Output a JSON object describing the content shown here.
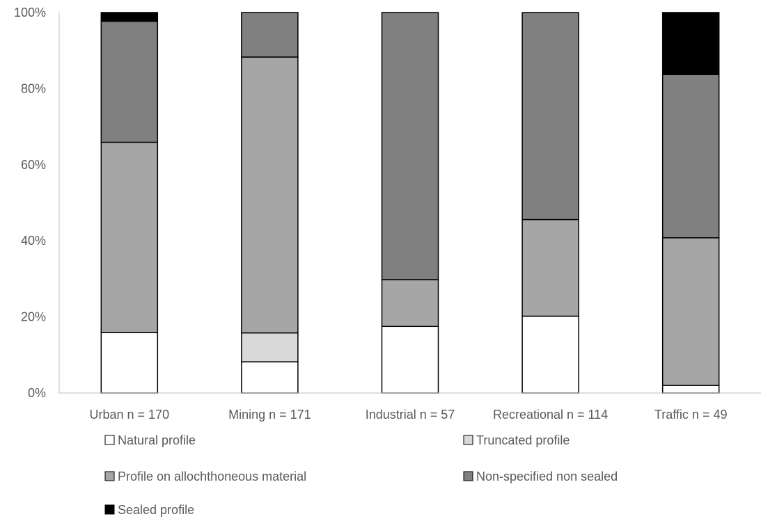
{
  "chart_data": {
    "type": "bar",
    "stacked": true,
    "percent": true,
    "categories": [
      "Urban n = 170",
      "Mining n = 171",
      "Industrial n = 57",
      "Recreational n = 114",
      "Traffic n = 49"
    ],
    "series": [
      {
        "name": "Natural profile",
        "color": "#ffffff",
        "values": [
          15.9,
          8.2,
          17.5,
          20.2,
          2.0
        ]
      },
      {
        "name": "Truncated profile",
        "color": "#d9d9d9",
        "values": [
          0,
          7.6,
          0,
          0,
          0
        ]
      },
      {
        "name": "Profile on allochthoneous material",
        "color": "#a6a6a6",
        "values": [
          50.0,
          72.5,
          12.3,
          25.4,
          38.8
        ]
      },
      {
        "name": "Non-specified non sealed",
        "color": "#808080",
        "values": [
          31.8,
          11.7,
          70.2,
          54.4,
          42.9
        ]
      },
      {
        "name": "Sealed profile",
        "color": "#000000",
        "values": [
          2.3,
          0,
          0,
          0,
          16.3
        ]
      }
    ],
    "yticks": [
      "0%",
      "20%",
      "40%",
      "60%",
      "80%",
      "100%"
    ],
    "ylim": [
      0,
      100
    ],
    "xlabel": "",
    "ylabel": "",
    "grid": false,
    "legend_position": "bottom"
  }
}
